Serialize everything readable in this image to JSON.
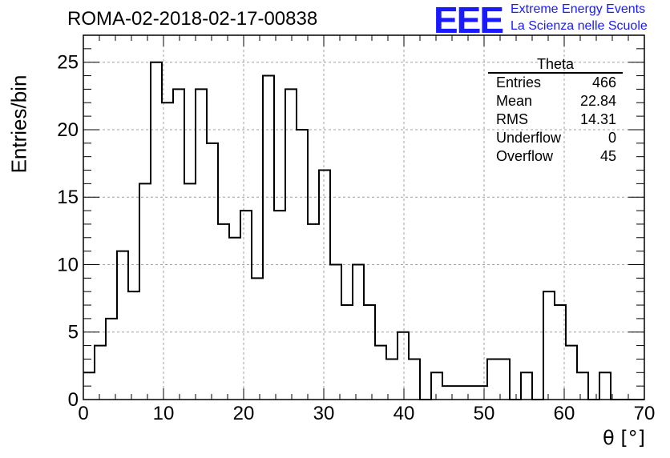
{
  "header": {
    "title": "ROMA-02-2018-02-17-00838",
    "logo_text": "EEE",
    "logo_line1": "Extreme Energy Events",
    "logo_line2": "La Scienza nelle Scuole"
  },
  "colors": {
    "histogram_line": "#000000",
    "logo": "#1a1aff",
    "grid": "#a0a0a0"
  },
  "stats_box": {
    "title": "Theta",
    "rows": [
      {
        "label": "Entries",
        "value": "466"
      },
      {
        "label": "Mean",
        "value": "22.84"
      },
      {
        "label": "RMS",
        "value": "14.31"
      },
      {
        "label": "Underflow",
        "value": "0"
      },
      {
        "label": "Overflow",
        "value": "45"
      }
    ]
  },
  "chart_data": {
    "type": "histogram",
    "title": "ROMA-02-2018-02-17-00838",
    "xlabel": "θ [°]",
    "ylabel": "Entries/bin",
    "xlim": [
      0,
      70
    ],
    "ylim": [
      0,
      27
    ],
    "bin_width": 1.4,
    "bin_edges_start": 0,
    "values": [
      2,
      4,
      6,
      11,
      8,
      16,
      25,
      22,
      23,
      16,
      23,
      19,
      13,
      12,
      14,
      9,
      24,
      14,
      23,
      20,
      13,
      17,
      10,
      7,
      10,
      7,
      4,
      3,
      5,
      3,
      0,
      2,
      1,
      1,
      1,
      1,
      3,
      3,
      0,
      2,
      0,
      8,
      7,
      4,
      2,
      0,
      2,
      0,
      0,
      0
    ],
    "x_ticks": [
      0,
      10,
      20,
      30,
      40,
      50,
      60,
      70
    ],
    "y_ticks": [
      0,
      5,
      10,
      15,
      20,
      25
    ],
    "grid": true,
    "legend": "stats box top-right"
  }
}
